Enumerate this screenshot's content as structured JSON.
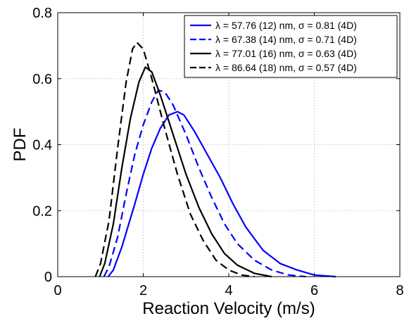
{
  "chart_data": {
    "type": "line",
    "title": "",
    "xlabel": "Reaction Velocity (m/s)",
    "ylabel": "PDF",
    "xlim": [
      0,
      8
    ],
    "ylim": [
      0,
      0.8
    ],
    "x_ticks": [
      "0",
      "2",
      "4",
      "6",
      "8"
    ],
    "y_ticks": [
      "0",
      "0.2",
      "0.4",
      "0.6",
      "0.8"
    ],
    "grid": "dotted",
    "legend_position": "top-right",
    "series": [
      {
        "name": "λ = 57.76 (12) nm, σ = 0.81 (4D)",
        "color": "#0000ff",
        "dash": "solid",
        "points": [
          [
            1.18,
            0
          ],
          [
            1.3,
            0.02
          ],
          [
            1.5,
            0.09
          ],
          [
            1.8,
            0.22
          ],
          [
            2.0,
            0.31
          ],
          [
            2.2,
            0.39
          ],
          [
            2.4,
            0.45
          ],
          [
            2.6,
            0.49
          ],
          [
            2.8,
            0.5
          ],
          [
            2.95,
            0.49
          ],
          [
            3.2,
            0.44
          ],
          [
            3.5,
            0.37
          ],
          [
            3.8,
            0.3
          ],
          [
            4.1,
            0.22
          ],
          [
            4.4,
            0.15
          ],
          [
            4.8,
            0.08
          ],
          [
            5.2,
            0.04
          ],
          [
            5.6,
            0.02
          ],
          [
            6.0,
            0.005
          ],
          [
            6.5,
            0
          ]
        ]
      },
      {
        "name": "λ = 67.38 (14) nm, σ = 0.71 (4D)",
        "color": "#0000ff",
        "dash": "dashed",
        "points": [
          [
            1.08,
            0
          ],
          [
            1.2,
            0.03
          ],
          [
            1.4,
            0.12
          ],
          [
            1.6,
            0.25
          ],
          [
            1.8,
            0.37
          ],
          [
            2.0,
            0.46
          ],
          [
            2.2,
            0.53
          ],
          [
            2.35,
            0.565
          ],
          [
            2.5,
            0.56
          ],
          [
            2.7,
            0.52
          ],
          [
            3.0,
            0.43
          ],
          [
            3.3,
            0.33
          ],
          [
            3.6,
            0.24
          ],
          [
            3.9,
            0.16
          ],
          [
            4.2,
            0.1
          ],
          [
            4.6,
            0.05
          ],
          [
            5.0,
            0.02
          ],
          [
            5.4,
            0.005
          ],
          [
            5.8,
            0
          ]
        ]
      },
      {
        "name": "λ = 77.01 (16) nm, σ = 0.63 (4D)",
        "color": "#000000",
        "dash": "solid",
        "points": [
          [
            0.98,
            0
          ],
          [
            1.1,
            0.04
          ],
          [
            1.3,
            0.16
          ],
          [
            1.5,
            0.33
          ],
          [
            1.7,
            0.48
          ],
          [
            1.9,
            0.59
          ],
          [
            2.05,
            0.635
          ],
          [
            2.2,
            0.62
          ],
          [
            2.4,
            0.55
          ],
          [
            2.7,
            0.43
          ],
          [
            3.0,
            0.31
          ],
          [
            3.3,
            0.21
          ],
          [
            3.6,
            0.13
          ],
          [
            3.9,
            0.07
          ],
          [
            4.2,
            0.035
          ],
          [
            4.6,
            0.01
          ],
          [
            5.0,
            0
          ]
        ]
      },
      {
        "name": "λ = 86.64 (18) nm, σ = 0.57 (4D)",
        "color": "#000000",
        "dash": "dashed",
        "points": [
          [
            0.88,
            0
          ],
          [
            1.0,
            0.04
          ],
          [
            1.2,
            0.17
          ],
          [
            1.4,
            0.39
          ],
          [
            1.6,
            0.59
          ],
          [
            1.75,
            0.69
          ],
          [
            1.85,
            0.71
          ],
          [
            2.0,
            0.69
          ],
          [
            2.2,
            0.6
          ],
          [
            2.5,
            0.45
          ],
          [
            2.8,
            0.31
          ],
          [
            3.1,
            0.19
          ],
          [
            3.4,
            0.11
          ],
          [
            3.7,
            0.05
          ],
          [
            4.0,
            0.02
          ],
          [
            4.3,
            0.005
          ],
          [
            4.6,
            0
          ]
        ]
      }
    ]
  }
}
